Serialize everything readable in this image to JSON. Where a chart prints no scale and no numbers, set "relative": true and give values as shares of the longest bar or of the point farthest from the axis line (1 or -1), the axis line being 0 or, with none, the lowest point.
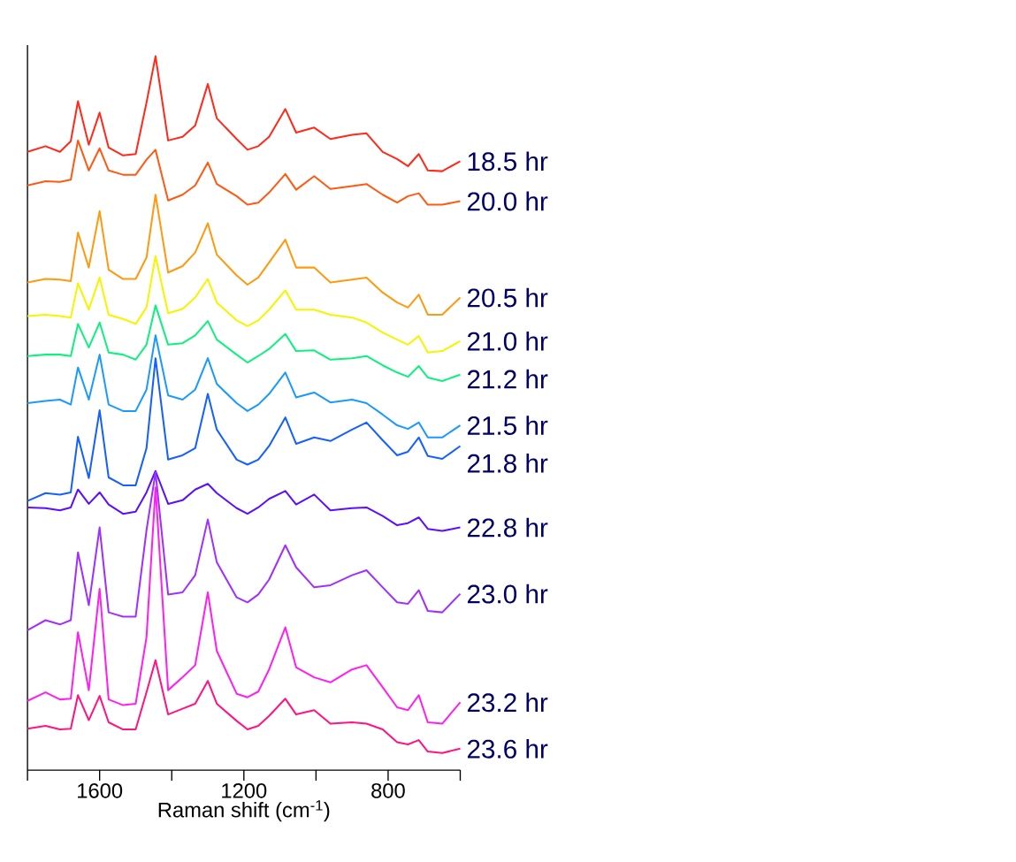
{
  "chart_data": {
    "type": "line",
    "relative": true,
    "xlabel": "Raman shift (cm$^{-1}$)",
    "xlim": [
      1800,
      600
    ],
    "xticks": [
      {
        "value": 1800,
        "label": null
      },
      1600,
      {
        "value": 1400,
        "label": null
      },
      1200,
      {
        "value": 1000,
        "label": null
      },
      800,
      {
        "value": 600,
        "label": null
      }
    ],
    "x": [
      1800,
      1750,
      1710,
      1680,
      1660,
      1630,
      1600,
      1575,
      1535,
      1500,
      1470,
      1445,
      1410,
      1370,
      1335,
      1300,
      1275,
      1220,
      1190,
      1160,
      1130,
      1085,
      1055,
      1005,
      960,
      900,
      860,
      815,
      775,
      745,
      715,
      690,
      650,
      600
    ],
    "series": [
      {
        "name": "18.5 hr",
        "color": "#ff2a1a",
        "values": [
          0.866,
          0.874,
          0.866,
          0.881,
          0.937,
          0.876,
          0.921,
          0.872,
          0.861,
          0.863,
          0.935,
          1.0,
          0.882,
          0.887,
          0.903,
          0.961,
          0.913,
          0.884,
          0.869,
          0.874,
          0.887,
          0.926,
          0.893,
          0.9,
          0.884,
          0.89,
          0.892,
          0.866,
          0.856,
          0.846,
          0.863,
          0.84,
          0.839,
          0.853
        ]
      },
      {
        "name": "20.0 hr",
        "color": "#ff5a14",
        "values": [
          0.819,
          0.825,
          0.824,
          0.827,
          0.882,
          0.84,
          0.871,
          0.84,
          0.834,
          0.834,
          0.855,
          0.869,
          0.798,
          0.806,
          0.819,
          0.851,
          0.821,
          0.804,
          0.792,
          0.795,
          0.809,
          0.835,
          0.813,
          0.832,
          0.814,
          0.818,
          0.821,
          0.806,
          0.795,
          0.804,
          0.808,
          0.792,
          0.792,
          0.797
        ]
      },
      {
        "name": "20.5 hr",
        "color": "#ff9a10",
        "values": [
          0.683,
          0.688,
          0.687,
          0.685,
          0.753,
          0.704,
          0.783,
          0.701,
          0.688,
          0.688,
          0.718,
          0.806,
          0.697,
          0.706,
          0.725,
          0.766,
          0.722,
          0.693,
          0.68,
          0.69,
          0.711,
          0.743,
          0.704,
          0.704,
          0.683,
          0.687,
          0.69,
          0.669,
          0.655,
          0.648,
          0.666,
          0.638,
          0.638,
          0.662
        ]
      },
      {
        "name": "21.0 hr",
        "color": "#f5f500",
        "values": [
          0.636,
          0.638,
          0.636,
          0.634,
          0.682,
          0.645,
          0.69,
          0.638,
          0.632,
          0.625,
          0.648,
          0.72,
          0.64,
          0.646,
          0.662,
          0.688,
          0.655,
          0.63,
          0.622,
          0.63,
          0.645,
          0.672,
          0.645,
          0.645,
          0.638,
          0.634,
          0.627,
          0.613,
          0.603,
          0.596,
          0.608,
          0.585,
          0.587,
          0.601
        ]
      },
      {
        "name": "21.2 hr",
        "color": "#10f080",
        "values": [
          0.58,
          0.582,
          0.582,
          0.58,
          0.625,
          0.592,
          0.627,
          0.585,
          0.582,
          0.575,
          0.596,
          0.651,
          0.596,
          0.598,
          0.609,
          0.629,
          0.603,
          0.582,
          0.571,
          0.58,
          0.59,
          0.611,
          0.587,
          0.588,
          0.575,
          0.577,
          0.58,
          0.567,
          0.557,
          0.551,
          0.566,
          0.55,
          0.545,
          0.554
        ]
      },
      {
        "name": "21.5 hr",
        "color": "#1a9aff",
        "values": [
          0.514,
          0.517,
          0.519,
          0.512,
          0.564,
          0.519,
          0.582,
          0.512,
          0.503,
          0.503,
          0.533,
          0.609,
          0.525,
          0.519,
          0.533,
          0.577,
          0.541,
          0.514,
          0.503,
          0.512,
          0.527,
          0.557,
          0.522,
          0.529,
          0.515,
          0.519,
          0.514,
          0.498,
          0.483,
          0.478,
          0.487,
          0.466,
          0.466,
          0.483
        ]
      },
      {
        "name": "21.8 hr",
        "color": "#1560ff",
        "values": [
          0.377,
          0.388,
          0.386,
          0.389,
          0.467,
          0.409,
          0.504,
          0.41,
          0.399,
          0.399,
          0.451,
          0.577,
          0.435,
          0.441,
          0.451,
          0.527,
          0.477,
          0.435,
          0.428,
          0.435,
          0.454,
          0.494,
          0.457,
          0.466,
          0.461,
          0.477,
          0.487,
          0.462,
          0.441,
          0.446,
          0.466,
          0.44,
          0.436,
          0.454
        ]
      },
      {
        "name": "22.8 hr",
        "color": "#5a10ff",
        "values": [
          0.368,
          0.367,
          0.364,
          0.368,
          0.393,
          0.373,
          0.389,
          0.372,
          0.359,
          0.362,
          0.389,
          0.419,
          0.373,
          0.378,
          0.393,
          0.401,
          0.388,
          0.367,
          0.359,
          0.368,
          0.38,
          0.391,
          0.372,
          0.386,
          0.364,
          0.367,
          0.368,
          0.356,
          0.343,
          0.346,
          0.354,
          0.338,
          0.335,
          0.34
        ]
      },
      {
        "name": "23.0 hr",
        "color": "#a030ff",
        "values": [
          0.196,
          0.21,
          0.204,
          0.21,
          0.305,
          0.231,
          0.34,
          0.221,
          0.215,
          0.215,
          0.336,
          0.417,
          0.246,
          0.249,
          0.273,
          0.351,
          0.291,
          0.242,
          0.235,
          0.246,
          0.267,
          0.315,
          0.284,
          0.256,
          0.259,
          0.273,
          0.28,
          0.256,
          0.235,
          0.233,
          0.252,
          0.223,
          0.221,
          0.247
        ]
      },
      {
        "name": "23.2 hr",
        "color": "#ff20f0",
        "values": [
          0.097,
          0.109,
          0.099,
          0.1,
          0.193,
          0.112,
          0.254,
          0.099,
          0.091,
          0.093,
          0.186,
          0.396,
          0.112,
          0.13,
          0.147,
          0.249,
          0.167,
          0.107,
          0.102,
          0.11,
          0.141,
          0.2,
          0.144,
          0.13,
          0.123,
          0.141,
          0.147,
          0.116,
          0.088,
          0.084,
          0.105,
          0.067,
          0.065,
          0.095
        ]
      },
      {
        "name": "23.6 hr",
        "color": "#ff1480",
        "values": [
          0.058,
          0.062,
          0.057,
          0.058,
          0.105,
          0.07,
          0.104,
          0.067,
          0.057,
          0.057,
          0.109,
          0.154,
          0.078,
          0.086,
          0.093,
          0.125,
          0.093,
          0.069,
          0.057,
          0.062,
          0.076,
          0.1,
          0.078,
          0.084,
          0.065,
          0.067,
          0.065,
          0.057,
          0.039,
          0.036,
          0.042,
          0.026,
          0.024,
          0.03
        ]
      }
    ]
  }
}
